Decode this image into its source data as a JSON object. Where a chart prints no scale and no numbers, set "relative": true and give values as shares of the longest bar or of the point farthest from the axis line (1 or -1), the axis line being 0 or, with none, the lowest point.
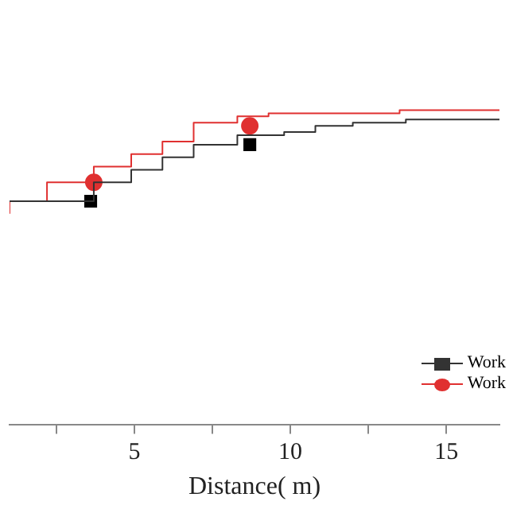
{
  "chart_data": {
    "type": "step",
    "relative": true,
    "xlabel": "Distance( m)",
    "xlim": [
      1.0,
      16.7
    ],
    "xticks": [
      {
        "value": 2.5,
        "label": null
      },
      5,
      {
        "value": 7.5,
        "label": null
      },
      10,
      {
        "value": 12.5,
        "label": null
      },
      15
    ],
    "legend": "bottom right",
    "grid": false,
    "tick_labels": "x",
    "series": [
      {
        "name": "Work",
        "color": "#333333",
        "x": [
          1.0,
          3.7,
          4.9,
          5.9,
          6.9,
          8.3,
          9.8,
          10.8,
          12.0,
          13.7,
          15.2,
          16.7
        ],
        "values": [
          0.71,
          0.71,
          0.77,
          0.81,
          0.85,
          0.89,
          0.92,
          0.93,
          0.95,
          0.96,
          0.97,
          0.97
        ]
      },
      {
        "name": "Work",
        "color": "#e03030",
        "x": [
          1.0,
          2.2,
          3.7,
          4.9,
          5.9,
          6.9,
          8.3,
          9.3,
          11.3,
          13.5,
          14.0,
          16.7
        ],
        "values": [
          0.67,
          0.71,
          0.77,
          0.82,
          0.86,
          0.9,
          0.96,
          0.98,
          0.99,
          0.99,
          1.0,
          1.0
        ]
      },
      {
        "type": "scatter",
        "color": "#000000",
        "marker": "square",
        "x": [
          3.6,
          8.7
        ],
        "values": [
          0.71,
          0.89
        ]
      },
      {
        "type": "scatter",
        "color": "#e03030",
        "marker": "circle",
        "x": [
          3.7,
          8.7
        ],
        "values": [
          0.77,
          0.95
        ]
      }
    ]
  }
}
